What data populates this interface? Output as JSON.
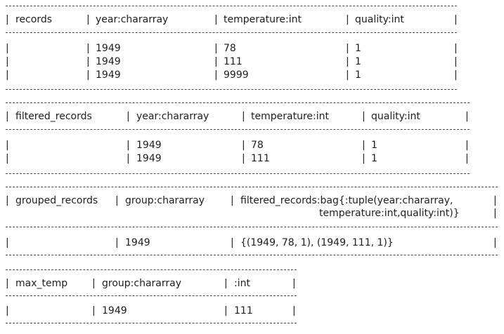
{
  "tables": [
    {
      "alias": "records",
      "headers": [
        "year:chararray",
        "temperature:int",
        "quality:int"
      ],
      "rows": [
        [
          "1949",
          "78",
          "1"
        ],
        [
          "1949",
          "111",
          "1"
        ],
        [
          "1949",
          "9999",
          "1"
        ]
      ]
    },
    {
      "alias": "filtered_records",
      "headers": [
        "year:chararray",
        "temperature:int",
        "quality:int"
      ],
      "rows": [
        [
          "1949",
          "78",
          "1"
        ],
        [
          "1949",
          "111",
          "1"
        ]
      ]
    },
    {
      "alias": "grouped_records",
      "headers": [
        "group:chararray",
        "filtered_records:bag{:tuple(year:chararray,",
        "temperature:int,quality:int)}"
      ],
      "rows": [
        [
          "1949",
          "{(1949, 78, 1), (1949, 111, 1)}"
        ]
      ]
    },
    {
      "alias": "max_temp",
      "headers": [
        "group:chararray",
        ":int"
      ],
      "rows": [
        [
          "1949",
          "111"
        ]
      ]
    }
  ],
  "separator": "|"
}
